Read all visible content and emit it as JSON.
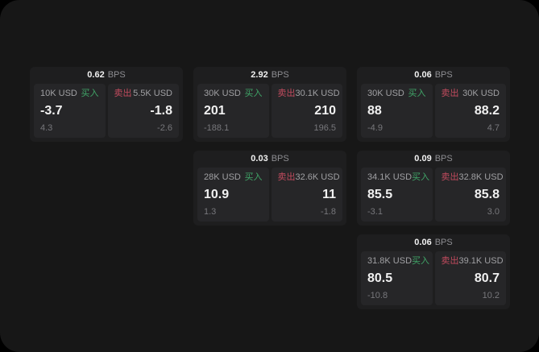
{
  "labels": {
    "bps_unit": "BPS",
    "buy": "买入",
    "sell": "卖出"
  },
  "colors": {
    "page_bg": "#171717",
    "card_bg": "#1e1e1f",
    "panel_bg": "#262628",
    "buy": "#40a568",
    "sell": "#c24b5e"
  },
  "cards": [
    {
      "bps": "0.62",
      "buy": {
        "size": "10K USD",
        "value": "-3.7",
        "sub": "4.3"
      },
      "sell": {
        "size": "5.5K USD",
        "value": "-1.8",
        "sub": "-2.6"
      }
    },
    {
      "bps": "2.92",
      "buy": {
        "size": "30K USD",
        "value": "201",
        "sub": "-188.1"
      },
      "sell": {
        "size": "30.1K USD",
        "value": "210",
        "sub": "196.5"
      }
    },
    {
      "bps": "0.06",
      "buy": {
        "size": "30K USD",
        "value": "88",
        "sub": "-4.9"
      },
      "sell": {
        "size": "30K USD",
        "value": "88.2",
        "sub": "4.7"
      }
    },
    {
      "bps": "0.03",
      "buy": {
        "size": "28K USD",
        "value": "10.9",
        "sub": "1.3"
      },
      "sell": {
        "size": "32.6K USD",
        "value": "11",
        "sub": "-1.8"
      }
    },
    {
      "bps": "0.09",
      "buy": {
        "size": "34.1K USD",
        "value": "85.5",
        "sub": "-3.1"
      },
      "sell": {
        "size": "32.8K USD",
        "value": "85.8",
        "sub": "3.0"
      }
    },
    {
      "bps": "0.06",
      "buy": {
        "size": "31.8K USD",
        "value": "80.5",
        "sub": "-10.8"
      },
      "sell": {
        "size": "39.1K USD",
        "value": "80.7",
        "sub": "10.2"
      }
    }
  ]
}
